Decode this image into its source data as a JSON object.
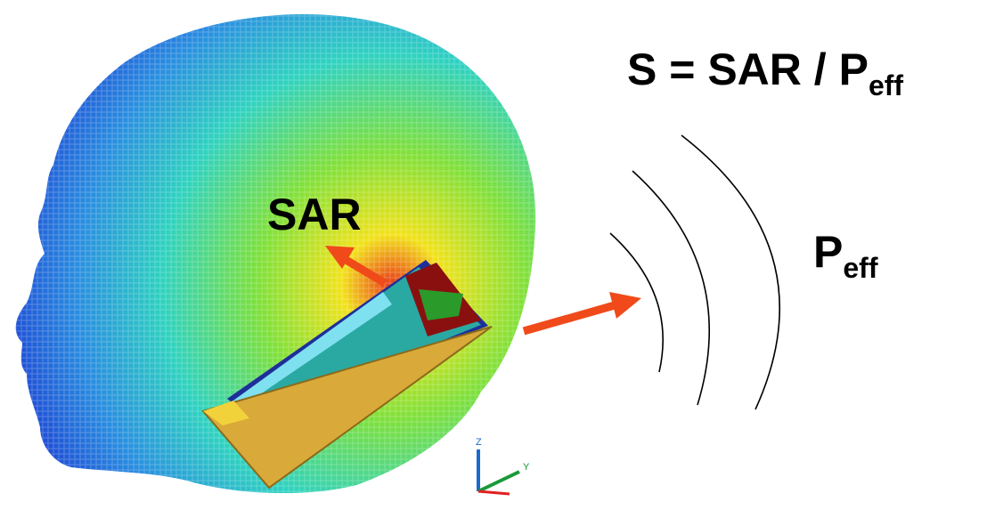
{
  "formula": {
    "main": "S = SAR / P",
    "subscript": "eff"
  },
  "sar_label": "SAR",
  "power_label": {
    "main": "P",
    "subscript": "eff"
  },
  "axes": {
    "z": "Z",
    "y": "Y"
  }
}
